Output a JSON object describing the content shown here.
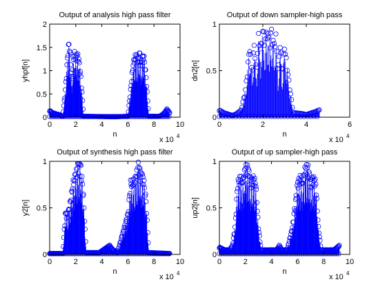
{
  "figure": {
    "background": "#ffffff",
    "mark_color": "#0000ff"
  },
  "chart_data": [
    {
      "type": "scatter",
      "title": "Output of analysis high pass filter",
      "xlabel": "n",
      "ylabel": "yhpf[n]",
      "xlim": [
        0,
        100000
      ],
      "ylim": [
        0,
        2
      ],
      "xticks": [
        0,
        2,
        4,
        6,
        8,
        10
      ],
      "xtick_labels": [
        "0",
        "2",
        "4",
        "6",
        "8",
        "10"
      ],
      "x_multiplier": "x 10",
      "x_exponent": "4",
      "yticks": [
        0,
        0.5,
        1,
        1.5,
        2
      ],
      "ytick_labels": [
        "0",
        "0.5",
        "1",
        "1.5",
        "2"
      ],
      "stem": true,
      "marker": "circle",
      "x_max": 92000,
      "envelope": [
        [
          0,
          0.15
        ],
        [
          2000,
          0.1
        ],
        [
          8000,
          0.05
        ],
        [
          10000,
          0.02
        ],
        [
          12000,
          0.6
        ],
        [
          14000,
          1.5
        ],
        [
          15000,
          1.68
        ],
        [
          16000,
          1.2
        ],
        [
          17000,
          0.8
        ],
        [
          18000,
          1.3
        ],
        [
          19000,
          1.43
        ],
        [
          20000,
          1.36
        ],
        [
          22000,
          1.38
        ],
        [
          24000,
          0.9
        ],
        [
          26000,
          0.02
        ],
        [
          50000,
          0.01
        ],
        [
          60000,
          0.02
        ],
        [
          62000,
          0.6
        ],
        [
          64000,
          1.2
        ],
        [
          66000,
          1.38
        ],
        [
          68000,
          1.3
        ],
        [
          69000,
          1.45
        ],
        [
          70000,
          1.2
        ],
        [
          71000,
          1.3
        ],
        [
          72000,
          1.4
        ],
        [
          73000,
          1.2
        ],
        [
          74000,
          0.9
        ],
        [
          76000,
          0.02
        ],
        [
          84000,
          0.02
        ],
        [
          86000,
          0.05
        ],
        [
          88000,
          0.1
        ],
        [
          90000,
          0.18
        ],
        [
          92000,
          0.1
        ]
      ]
    },
    {
      "type": "scatter",
      "title": "Output of down sampler-high pass",
      "xlabel": "n",
      "ylabel": "dn2[n]",
      "xlim": [
        0,
        60000
      ],
      "ylim": [
        0,
        1
      ],
      "xticks": [
        0,
        2,
        4,
        6
      ],
      "xtick_labels": [
        "0",
        "2",
        "4",
        "6"
      ],
      "x_multiplier": "x 10",
      "x_exponent": "4",
      "yticks": [
        0,
        0.5,
        1
      ],
      "ytick_labels": [
        "0",
        "0.5",
        "1"
      ],
      "stem": true,
      "marker": "circle",
      "x_max": 46000,
      "envelope": [
        [
          0,
          0.08
        ],
        [
          2000,
          0.05
        ],
        [
          6000,
          0.02
        ],
        [
          8000,
          0.04
        ],
        [
          10000,
          0.08
        ],
        [
          12000,
          0.3
        ],
        [
          14000,
          0.8
        ],
        [
          15000,
          0.5
        ],
        [
          16000,
          0.82
        ],
        [
          17000,
          0.5
        ],
        [
          18000,
          0.9
        ],
        [
          19000,
          0.75
        ],
        [
          20000,
          0.97
        ],
        [
          21000,
          0.85
        ],
        [
          22000,
          0.97
        ],
        [
          23000,
          0.85
        ],
        [
          24000,
          0.97
        ],
        [
          25000,
          0.8
        ],
        [
          26000,
          0.9
        ],
        [
          27000,
          0.5
        ],
        [
          28000,
          0.82
        ],
        [
          29000,
          0.5
        ],
        [
          30000,
          0.8
        ],
        [
          32000,
          0.4
        ],
        [
          34000,
          0.05
        ],
        [
          38000,
          0.04
        ],
        [
          40000,
          0.03
        ],
        [
          44000,
          0.06
        ],
        [
          46000,
          0.08
        ]
      ]
    },
    {
      "type": "scatter",
      "title": "Output of synthesis high pass filter",
      "xlabel": "n",
      "ylabel": "y2[n]",
      "xlim": [
        0,
        100000
      ],
      "ylim": [
        0,
        1
      ],
      "xticks": [
        0,
        2,
        4,
        6,
        8,
        10
      ],
      "xtick_labels": [
        "0",
        "2",
        "4",
        "6",
        "8",
        "10"
      ],
      "x_multiplier": "x 10",
      "x_exponent": "4",
      "yticks": [
        0,
        0.5,
        1
      ],
      "ytick_labels": [
        "0",
        "0.5",
        "1"
      ],
      "stem": true,
      "marker": "circle",
      "x_max": 92000,
      "envelope": [
        [
          0,
          0.01
        ],
        [
          10000,
          0.01
        ],
        [
          12000,
          0.45
        ],
        [
          14000,
          0.45
        ],
        [
          16000,
          0.6
        ],
        [
          18000,
          0.8
        ],
        [
          20000,
          0.9
        ],
        [
          22000,
          1.0
        ],
        [
          24000,
          0.98
        ],
        [
          26000,
          0.65
        ],
        [
          28000,
          0.02
        ],
        [
          38000,
          0.02
        ],
        [
          41000,
          0.05
        ],
        [
          44000,
          0.08
        ],
        [
          46000,
          0.1
        ],
        [
          48000,
          0.06
        ],
        [
          52000,
          0.02
        ],
        [
          60000,
          0.45
        ],
        [
          62000,
          0.8
        ],
        [
          64000,
          0.8
        ],
        [
          66000,
          0.85
        ],
        [
          68000,
          1.0
        ],
        [
          70000,
          0.9
        ],
        [
          72000,
          0.85
        ],
        [
          74000,
          0.6
        ],
        [
          76000,
          0.02
        ],
        [
          92000,
          0.01
        ]
      ]
    },
    {
      "type": "scatter",
      "title": "Output of up sampler-high pass",
      "xlabel": "n",
      "ylabel": "up2[n]",
      "xlim": [
        0,
        100000
      ],
      "ylim": [
        0,
        1
      ],
      "xticks": [
        0,
        2,
        4,
        6,
        8,
        10
      ],
      "xtick_labels": [
        "0",
        "2",
        "4",
        "6",
        "8",
        "10"
      ],
      "x_multiplier": "x 10",
      "x_exponent": "4",
      "yticks": [
        0,
        0.5,
        1
      ],
      "ytick_labels": [
        "0",
        "0.5",
        "1"
      ],
      "stem": true,
      "marker": "circle",
      "x_max": 92000,
      "envelope": [
        [
          0,
          0.08
        ],
        [
          4000,
          0.05
        ],
        [
          8000,
          0.05
        ],
        [
          10000,
          0.1
        ],
        [
          12000,
          0.3
        ],
        [
          14000,
          0.8
        ],
        [
          16000,
          0.85
        ],
        [
          18000,
          0.82
        ],
        [
          20000,
          0.97
        ],
        [
          22000,
          0.97
        ],
        [
          24000,
          0.82
        ],
        [
          26000,
          0.85
        ],
        [
          28000,
          0.8
        ],
        [
          30000,
          0.3
        ],
        [
          32000,
          0.05
        ],
        [
          44000,
          0.05
        ],
        [
          46000,
          0.1
        ],
        [
          48000,
          0.05
        ],
        [
          52000,
          0.05
        ],
        [
          56000,
          0.3
        ],
        [
          60000,
          0.8
        ],
        [
          62000,
          0.85
        ],
        [
          64000,
          0.82
        ],
        [
          66000,
          0.97
        ],
        [
          68000,
          0.97
        ],
        [
          70000,
          0.82
        ],
        [
          72000,
          0.85
        ],
        [
          74000,
          0.8
        ],
        [
          76000,
          0.3
        ],
        [
          78000,
          0.05
        ],
        [
          88000,
          0.05
        ],
        [
          92000,
          0.1
        ]
      ]
    }
  ]
}
